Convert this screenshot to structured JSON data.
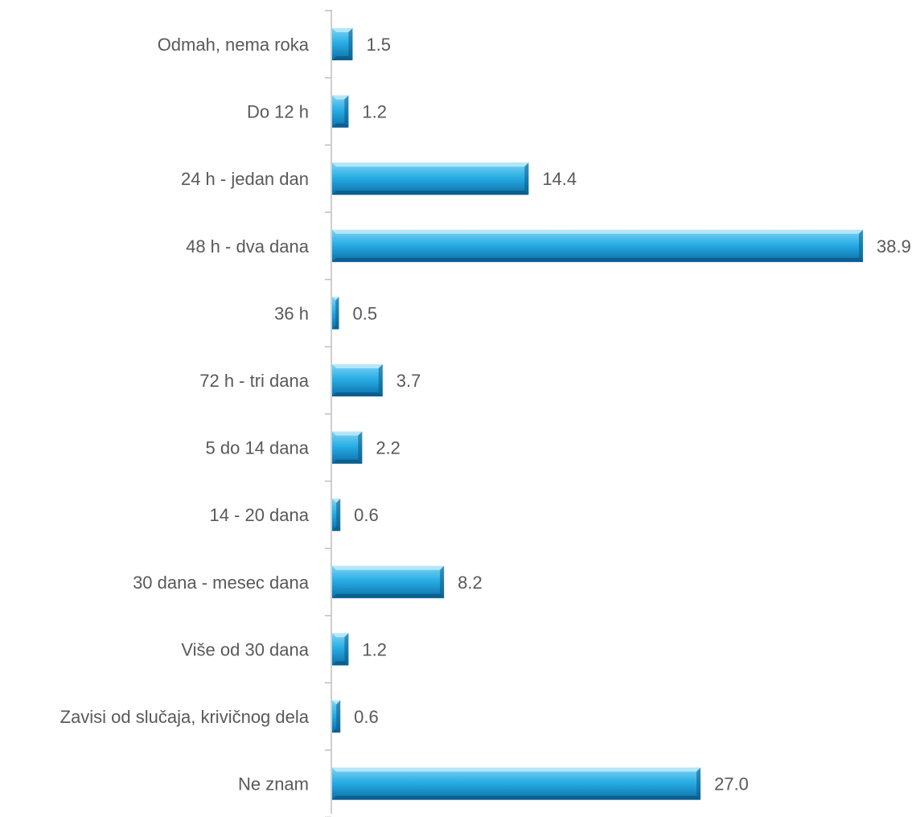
{
  "chart_data": {
    "type": "bar",
    "orientation": "horizontal",
    "categories": [
      "Odmah, nema roka",
      "Do 12 h",
      "24 h - jedan dan",
      "48 h - dva dana",
      "36 h",
      "72 h - tri dana",
      "5 do 14 dana",
      "14 - 20 dana",
      "30 dana - mesec dana",
      "Više od 30 dana",
      "Zavisi od slučaja, krivičnog dela",
      "Ne znam"
    ],
    "values": [
      1.5,
      1.2,
      14.4,
      38.9,
      0.5,
      3.7,
      2.2,
      0.6,
      8.2,
      1.2,
      0.6,
      27.0
    ],
    "data_labels": [
      "1.5",
      "1.2",
      "14.4",
      "38.9",
      "0.5",
      "3.7",
      "2.2",
      "0.6",
      "8.2",
      "1.2",
      "0.6",
      "27.0"
    ],
    "title": "",
    "xlabel": "",
    "ylabel": "",
    "xlim": [
      0,
      39
    ],
    "grid": false,
    "legend": "none",
    "colors": {
      "bar_top": "#7fd3f4",
      "bar_mid": "#29aee5",
      "bar_bottom": "#0b6fa8",
      "bevel_light": "#bfeafb",
      "bevel_dark": "#0a5a88",
      "axis": "#bfbfbf",
      "text": "#595959"
    }
  }
}
